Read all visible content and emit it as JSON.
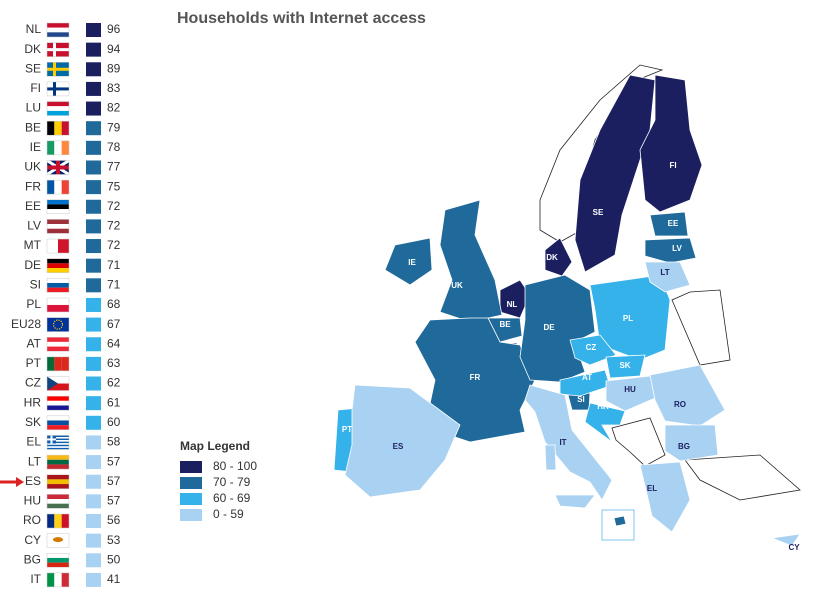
{
  "title": "Households with Internet access",
  "rows": [
    {
      "code": "NL",
      "value": 96
    },
    {
      "code": "DK",
      "value": 94
    },
    {
      "code": "SE",
      "value": 89
    },
    {
      "code": "FI",
      "value": 83
    },
    {
      "code": "LU",
      "value": 82
    },
    {
      "code": "BE",
      "value": 79
    },
    {
      "code": "IE",
      "value": 78
    },
    {
      "code": "UK",
      "value": 77
    },
    {
      "code": "FR",
      "value": 75
    },
    {
      "code": "EE",
      "value": 72
    },
    {
      "code": "LV",
      "value": 72
    },
    {
      "code": "MT",
      "value": 72
    },
    {
      "code": "DE",
      "value": 71
    },
    {
      "code": "SI",
      "value": 71
    },
    {
      "code": "PL",
      "value": 68
    },
    {
      "code": "EU28",
      "value": 67
    },
    {
      "code": "AT",
      "value": 64
    },
    {
      "code": "PT",
      "value": 63
    },
    {
      "code": "CZ",
      "value": 62
    },
    {
      "code": "HR",
      "value": 61
    },
    {
      "code": "SK",
      "value": 60
    },
    {
      "code": "EL",
      "value": 58
    },
    {
      "code": "LT",
      "value": 57
    },
    {
      "code": "ES",
      "value": 57
    },
    {
      "code": "HU",
      "value": 57
    },
    {
      "code": "RO",
      "value": 56
    },
    {
      "code": "CY",
      "value": 53
    },
    {
      "code": "BG",
      "value": 50
    },
    {
      "code": "IT",
      "value": 41
    }
  ],
  "legend": {
    "title": "Map Legend",
    "items": [
      {
        "label": "80 - 100",
        "min": 80,
        "max": 100,
        "color": "#1b1f5f"
      },
      {
        "label": "70 - 79",
        "min": 70,
        "max": 79,
        "color": "#1f6a9a"
      },
      {
        "label": "60 - 69",
        "min": 60,
        "max": 69,
        "color": "#35b2ea"
      },
      {
        "label": "0 - 59",
        "min": 0,
        "max": 59,
        "color": "#a9d1f2"
      }
    ]
  }
}
